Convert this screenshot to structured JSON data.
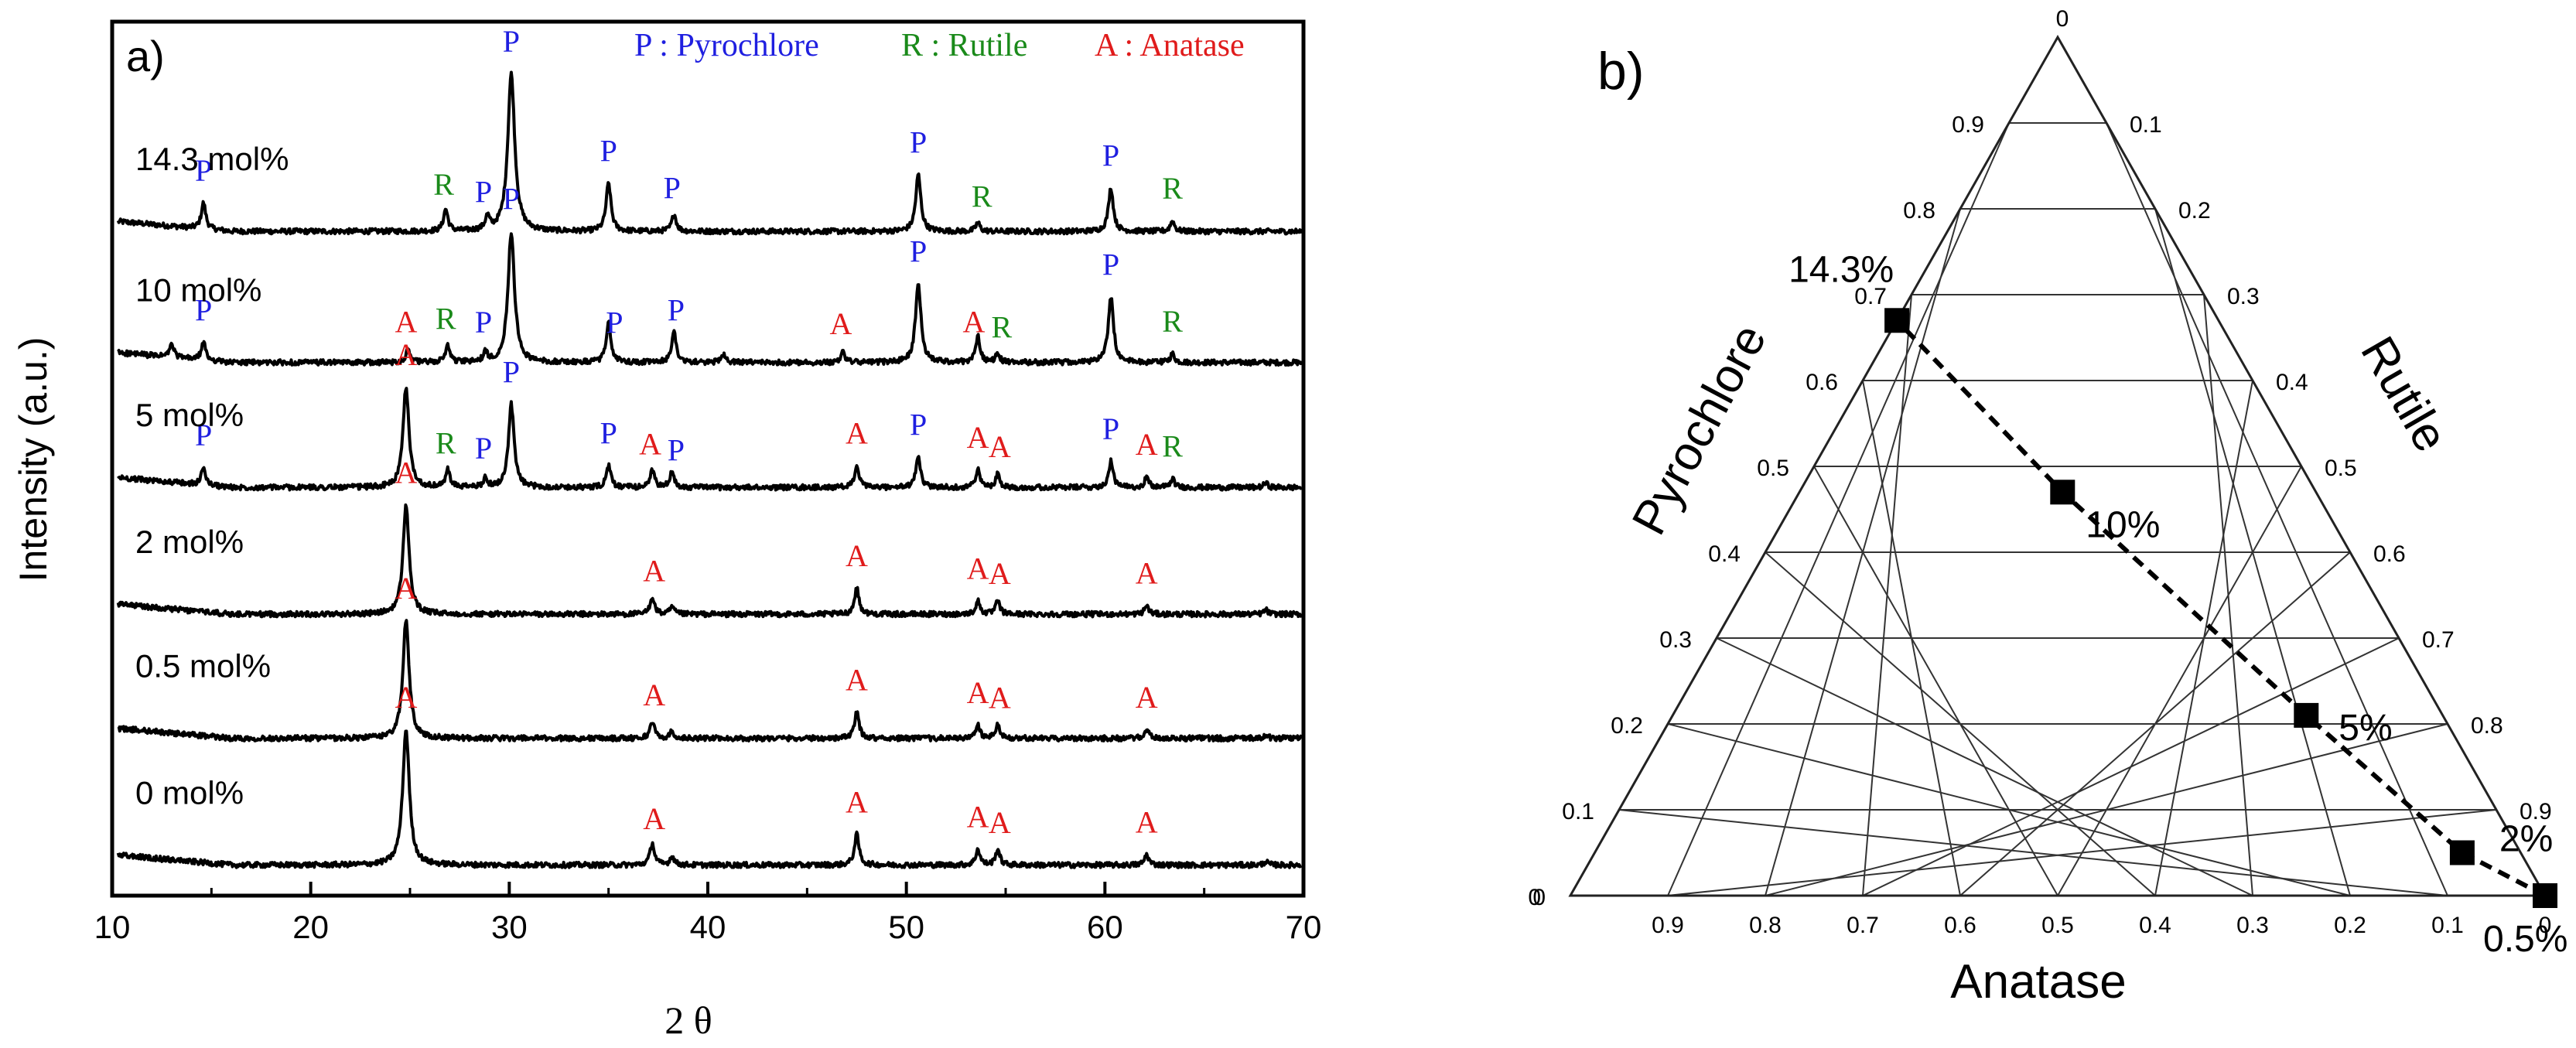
{
  "panel_a": {
    "label": "a)",
    "xlabel": "2 θ",
    "ylabel": "Intensity (a.u.)",
    "legend": [
      {
        "letter": "P",
        "text": "P : Pyrochlore",
        "color": "#1f1fe0"
      },
      {
        "letter": "R",
        "text": "R : Rutile",
        "color": "#1a8a1a"
      },
      {
        "letter": "A",
        "text": "A : Anatase",
        "color": "#e01b1b"
      }
    ]
  },
  "panel_b": {
    "label": "b)",
    "axis_bottom": "Anatase",
    "axis_left": "Pyrochlore",
    "axis_right": "Rutile"
  },
  "chart_data": [
    {
      "type": "line",
      "title": "a)",
      "xlabel": "2 θ",
      "ylabel": "Intensity (a.u.)",
      "xlim": [
        10,
        70
      ],
      "xticks": [
        10,
        20,
        30,
        40,
        50,
        60,
        70
      ],
      "series": [
        {
          "name": "14.3 mol%",
          "baseline": 0.76,
          "peaks": [
            [
              14.6,
              0.03
            ],
            [
              26.8,
              0.025
            ],
            [
              28.9,
              0.015
            ],
            [
              30.1,
              0.18
            ],
            [
              35.0,
              0.055
            ],
            [
              38.3,
              0.02
            ],
            [
              50.6,
              0.065
            ],
            [
              53.6,
              0.01
            ],
            [
              60.3,
              0.05
            ],
            [
              63.4,
              0.012
            ]
          ],
          "labels": [
            {
              "x": 14.6,
              "t": "P"
            },
            {
              "x": 26.7,
              "t": "R"
            },
            {
              "x": 28.7,
              "t": "P"
            },
            {
              "x": 30.1,
              "t": "P"
            },
            {
              "x": 35.0,
              "t": "P"
            },
            {
              "x": 38.2,
              "t": "P"
            },
            {
              "x": 50.6,
              "t": "P"
            },
            {
              "x": 53.8,
              "t": "R"
            },
            {
              "x": 60.3,
              "t": "P"
            },
            {
              "x": 63.4,
              "t": "R"
            }
          ]
        },
        {
          "name": "10 mol%",
          "baseline": 0.61,
          "peaks": [
            [
              13.0,
              0.015
            ],
            [
              14.6,
              0.02
            ],
            [
              24.9,
              0.015
            ],
            [
              26.9,
              0.02
            ],
            [
              28.8,
              0.01
            ],
            [
              30.1,
              0.15
            ],
            [
              35.0,
              0.045
            ],
            [
              38.3,
              0.035
            ],
            [
              40.8,
              0.01
            ],
            [
              46.8,
              0.012
            ],
            [
              50.6,
              0.09
            ],
            [
              53.6,
              0.03
            ],
            [
              54.6,
              0.01
            ],
            [
              60.3,
              0.075
            ],
            [
              63.4,
              0.01
            ]
          ],
          "labels": [
            {
              "x": 14.6,
              "t": "P"
            },
            {
              "x": 24.8,
              "t": "A"
            },
            {
              "x": 26.8,
              "t": "R"
            },
            {
              "x": 28.7,
              "t": "P"
            },
            {
              "x": 30.1,
              "t": "P"
            },
            {
              "x": 35.3,
              "t": "P"
            },
            {
              "x": 38.4,
              "t": "P"
            },
            {
              "x": 46.7,
              "t": "A"
            },
            {
              "x": 50.6,
              "t": "P"
            },
            {
              "x": 53.4,
              "t": "A"
            },
            {
              "x": 54.8,
              "t": "R"
            },
            {
              "x": 60.3,
              "t": "P"
            },
            {
              "x": 63.4,
              "t": "R"
            }
          ]
        },
        {
          "name": "5 mol%",
          "baseline": 0.467,
          "peaks": [
            [
              14.6,
              0.02
            ],
            [
              24.8,
              0.115
            ],
            [
              26.9,
              0.02
            ],
            [
              28.8,
              0.01
            ],
            [
              30.1,
              0.095
            ],
            [
              35.0,
              0.025
            ],
            [
              37.2,
              0.02
            ],
            [
              38.2,
              0.018
            ],
            [
              47.5,
              0.025
            ],
            [
              50.6,
              0.035
            ],
            [
              53.6,
              0.02
            ],
            [
              54.6,
              0.015
            ],
            [
              60.3,
              0.03
            ],
            [
              62.1,
              0.012
            ],
            [
              63.4,
              0.01
            ],
            [
              68.1,
              0.005
            ]
          ],
          "labels": [
            {
              "x": 14.6,
              "t": "P"
            },
            {
              "x": 24.8,
              "t": "A"
            },
            {
              "x": 26.8,
              "t": "R"
            },
            {
              "x": 28.7,
              "t": "P"
            },
            {
              "x": 30.1,
              "t": "P"
            },
            {
              "x": 35.0,
              "t": "P"
            },
            {
              "x": 37.1,
              "t": "A"
            },
            {
              "x": 38.4,
              "t": "P"
            },
            {
              "x": 47.5,
              "t": "A"
            },
            {
              "x": 50.6,
              "t": "P"
            },
            {
              "x": 53.6,
              "t": "A"
            },
            {
              "x": 54.7,
              "t": "A"
            },
            {
              "x": 60.3,
              "t": "P"
            },
            {
              "x": 62.1,
              "t": "A"
            },
            {
              "x": 63.4,
              "t": "R"
            }
          ]
        },
        {
          "name": "2 mol%",
          "baseline": 0.322,
          "peaks": [
            [
              24.8,
              0.125
            ],
            [
              37.2,
              0.02
            ],
            [
              38.2,
              0.008
            ],
            [
              47.5,
              0.03
            ],
            [
              53.6,
              0.015
            ],
            [
              54.6,
              0.015
            ],
            [
              62.1,
              0.01
            ],
            [
              68.1,
              0.005
            ]
          ],
          "labels": [
            {
              "x": 24.8,
              "t": "A"
            },
            {
              "x": 37.3,
              "t": "A"
            },
            {
              "x": 47.5,
              "t": "A"
            },
            {
              "x": 53.6,
              "t": "A"
            },
            {
              "x": 54.7,
              "t": "A"
            },
            {
              "x": 62.1,
              "t": "A"
            }
          ]
        },
        {
          "name": "0.5 mol%",
          "baseline": 0.18,
          "peaks": [
            [
              24.8,
              0.135
            ],
            [
              37.2,
              0.02
            ],
            [
              38.2,
              0.008
            ],
            [
              47.5,
              0.03
            ],
            [
              53.6,
              0.015
            ],
            [
              54.6,
              0.015
            ],
            [
              62.1,
              0.01
            ],
            [
              68.1,
              0.004
            ]
          ],
          "labels": [
            {
              "x": 24.8,
              "t": "A"
            },
            {
              "x": 37.3,
              "t": "A"
            },
            {
              "x": 47.5,
              "t": "A"
            },
            {
              "x": 53.6,
              "t": "A"
            },
            {
              "x": 54.7,
              "t": "A"
            },
            {
              "x": 62.1,
              "t": "A"
            }
          ]
        },
        {
          "name": "0 mol%",
          "baseline": 0.035,
          "peaks": [
            [
              24.8,
              0.155
            ],
            [
              37.2,
              0.025
            ],
            [
              38.2,
              0.01
            ],
            [
              47.5,
              0.035
            ],
            [
              53.6,
              0.018
            ],
            [
              54.6,
              0.018
            ],
            [
              62.1,
              0.012
            ],
            [
              68.1,
              0.004
            ]
          ],
          "labels": [
            {
              "x": 24.8,
              "t": "A"
            },
            {
              "x": 37.3,
              "t": "A"
            },
            {
              "x": 47.5,
              "t": "A"
            },
            {
              "x": 53.6,
              "t": "A"
            },
            {
              "x": 54.7,
              "t": "A"
            },
            {
              "x": 62.1,
              "t": "A"
            }
          ]
        }
      ]
    },
    {
      "type": "ternary",
      "title": "b)",
      "axes": {
        "bottom": "Anatase",
        "left": "Pyrochlore",
        "right": "Rutile"
      },
      "left_ticks": [
        "0",
        "0.1",
        "0.2",
        "0.3",
        "0.4",
        "0.5",
        "0.6",
        "0.7",
        "0.8",
        "0.9"
      ],
      "right_ticks": [
        "0.1",
        "0.2",
        "0.3",
        "0.4",
        "0.5",
        "0.6",
        "0.7",
        "0.8",
        "0.9"
      ],
      "bottom_ticks": [
        "0.9",
        "0.8",
        "0.7",
        "0.6",
        "0.5",
        "0.4",
        "0.3",
        "0.2",
        "0.1",
        "0"
      ],
      "apex_tick": "0",
      "points": [
        {
          "label": "0.5%",
          "anatase": 1.0,
          "rutile": 0.0,
          "pyrochlore": 0.0
        },
        {
          "label": "2%",
          "anatase": 0.89,
          "rutile": 0.06,
          "pyrochlore": 0.05
        },
        {
          "label": "5%",
          "anatase": 0.65,
          "rutile": 0.14,
          "pyrochlore": 0.21
        },
        {
          "label": "10%",
          "anatase": 0.27,
          "rutile": 0.26,
          "pyrochlore": 0.47
        },
        {
          "label": "14.3%",
          "anatase": 0.0,
          "rutile": 0.33,
          "pyrochlore": 0.67
        }
      ]
    }
  ]
}
